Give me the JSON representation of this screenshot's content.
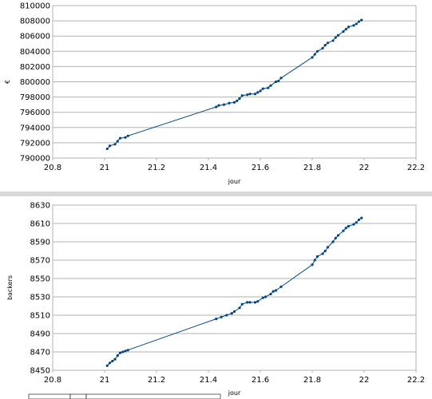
{
  "chart_data": [
    {
      "type": "scatter",
      "xlabel": "jour",
      "ylabel": "€",
      "xlim": [
        20.8,
        22.2
      ],
      "ylim": [
        790000,
        810000
      ],
      "xticks": [
        20.8,
        21,
        21.2,
        21.4,
        21.6,
        21.8,
        22,
        22.2
      ],
      "yticks": [
        790000,
        792000,
        794000,
        796000,
        798000,
        800000,
        802000,
        804000,
        806000,
        808000,
        810000
      ],
      "x_tick_labels": [
        "20.8",
        "21",
        "21.2",
        "21.4",
        "21.6",
        "21.8",
        "22",
        "22.2"
      ],
      "y_tick_labels": [
        "790000",
        "792000",
        "794000",
        "796000",
        "798000",
        "800000",
        "802000",
        "804000",
        "806000",
        "808000",
        "810000"
      ],
      "grid": true,
      "legend": false,
      "color": "#004586",
      "points": [
        [
          21.01,
          791200
        ],
        [
          21.02,
          791600
        ],
        [
          21.04,
          791800
        ],
        [
          21.05,
          792200
        ],
        [
          21.06,
          792600
        ],
        [
          21.08,
          792700
        ],
        [
          21.09,
          792900
        ],
        [
          21.43,
          796700
        ],
        [
          21.44,
          796900
        ],
        [
          21.46,
          797000
        ],
        [
          21.48,
          797200
        ],
        [
          21.5,
          797300
        ],
        [
          21.51,
          797500
        ],
        [
          21.52,
          797800
        ],
        [
          21.53,
          798200
        ],
        [
          21.55,
          798300
        ],
        [
          21.56,
          798400
        ],
        [
          21.58,
          798400
        ],
        [
          21.59,
          798600
        ],
        [
          21.6,
          798800
        ],
        [
          21.61,
          799100
        ],
        [
          21.63,
          799200
        ],
        [
          21.64,
          799500
        ],
        [
          21.66,
          800000
        ],
        [
          21.67,
          800100
        ],
        [
          21.68,
          800500
        ],
        [
          21.8,
          803200
        ],
        [
          21.81,
          803600
        ],
        [
          21.82,
          804000
        ],
        [
          21.84,
          804400
        ],
        [
          21.85,
          804800
        ],
        [
          21.86,
          805100
        ],
        [
          21.88,
          805400
        ],
        [
          21.89,
          805800
        ],
        [
          21.9,
          806100
        ],
        [
          21.92,
          806600
        ],
        [
          21.93,
          806900
        ],
        [
          21.94,
          807200
        ],
        [
          21.96,
          807400
        ],
        [
          21.97,
          807600
        ],
        [
          21.98,
          807900
        ],
        [
          21.99,
          808100
        ]
      ]
    },
    {
      "type": "scatter",
      "xlabel": "jour",
      "ylabel": "backers",
      "xlim": [
        20.8,
        22.2
      ],
      "ylim": [
        8450,
        8630
      ],
      "xticks": [
        20.8,
        21,
        21.2,
        21.4,
        21.6,
        21.8,
        22,
        22.2
      ],
      "yticks": [
        8450,
        8470,
        8490,
        8510,
        8530,
        8550,
        8570,
        8590,
        8610,
        8630
      ],
      "x_tick_labels": [
        "20.8",
        "21",
        "21.2",
        "21.4",
        "21.6",
        "21.8",
        "22",
        "22.2"
      ],
      "y_tick_labels": [
        "8450",
        "8470",
        "8490",
        "8510",
        "8530",
        "8550",
        "8570",
        "8590",
        "8610",
        "8630"
      ],
      "grid": true,
      "legend": false,
      "color": "#004586",
      "points": [
        [
          21.01,
          8455
        ],
        [
          21.02,
          8458
        ],
        [
          21.03,
          8460
        ],
        [
          21.04,
          8462
        ],
        [
          21.05,
          8466
        ],
        [
          21.06,
          8469
        ],
        [
          21.07,
          8470
        ],
        [
          21.08,
          8471
        ],
        [
          21.09,
          8472
        ],
        [
          21.43,
          8506
        ],
        [
          21.45,
          8508
        ],
        [
          21.47,
          8510
        ],
        [
          21.49,
          8512
        ],
        [
          21.5,
          8514
        ],
        [
          21.52,
          8518
        ],
        [
          21.53,
          8522
        ],
        [
          21.55,
          8524
        ],
        [
          21.56,
          8524
        ],
        [
          21.58,
          8524
        ],
        [
          21.59,
          8525
        ],
        [
          21.61,
          8529
        ],
        [
          21.62,
          8530
        ],
        [
          21.64,
          8533
        ],
        [
          21.65,
          8536
        ],
        [
          21.66,
          8537
        ],
        [
          21.68,
          8541
        ],
        [
          21.8,
          8565
        ],
        [
          21.81,
          8570
        ],
        [
          21.82,
          8574
        ],
        [
          21.84,
          8577
        ],
        [
          21.85,
          8580
        ],
        [
          21.86,
          8584
        ],
        [
          21.88,
          8590
        ],
        [
          21.89,
          8594
        ],
        [
          21.9,
          8597
        ],
        [
          21.92,
          8602
        ],
        [
          21.93,
          8605
        ],
        [
          21.94,
          8607
        ],
        [
          21.96,
          8609
        ],
        [
          21.97,
          8611
        ],
        [
          21.98,
          8614
        ],
        [
          21.99,
          8616
        ]
      ]
    }
  ]
}
